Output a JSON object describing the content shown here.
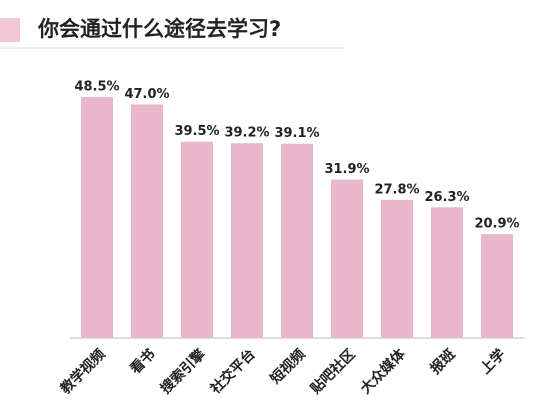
{
  "chart_data": {
    "type": "bar",
    "title": "你会通过什么途径去学习?",
    "categories": [
      "教学视频",
      "看书",
      "搜索引擎",
      "社交平台",
      "短视频",
      "贴吧社区",
      "大众媒体",
      "报班",
      "上学"
    ],
    "values": [
      48.5,
      47.0,
      39.5,
      39.2,
      39.1,
      31.9,
      27.8,
      26.3,
      20.9
    ],
    "value_labels": [
      "48.5%",
      "47.0%",
      "39.5%",
      "39.2%",
      "39.1%",
      "31.9%",
      "27.8%",
      "26.3%",
      "20.9%"
    ],
    "color": "#e9b6cb"
  }
}
